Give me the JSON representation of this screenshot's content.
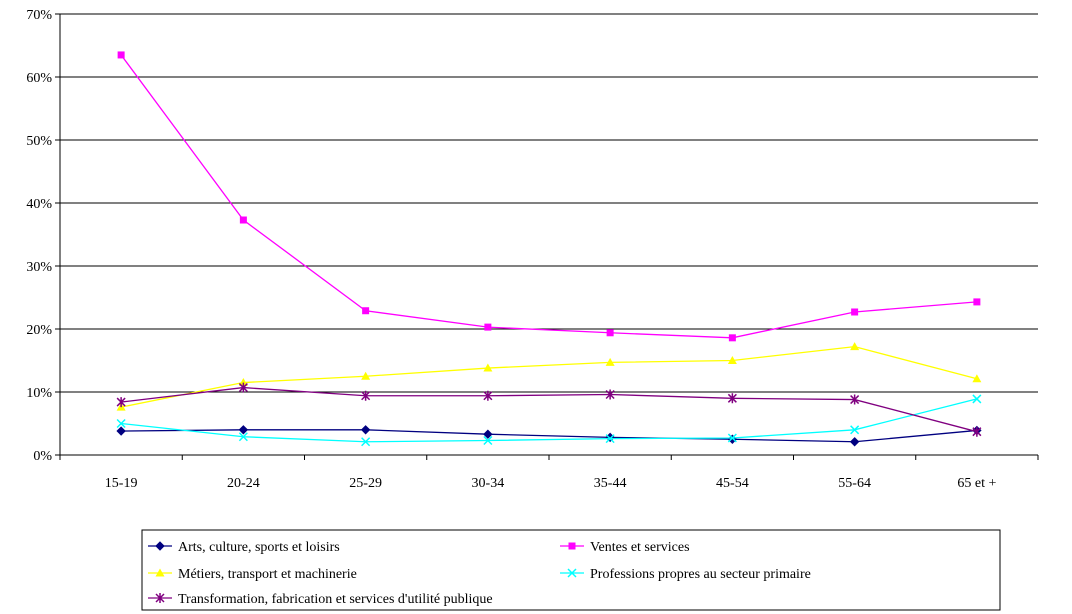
{
  "chart_data": {
    "type": "line",
    "categories": [
      "15-19",
      "20-24",
      "25-29",
      "30-34",
      "35-44",
      "45-54",
      "55-64",
      "65 et +"
    ],
    "ylim": [
      0,
      70
    ],
    "yticks": [
      0,
      10,
      20,
      30,
      40,
      50,
      60,
      70
    ],
    "ytick_format": "percent",
    "grid": "horizontal",
    "legend_position": "bottom",
    "series": [
      {
        "name": "Arts, culture, sports et loisirs",
        "color": "#000080",
        "marker": "diamond",
        "values": [
          3.8,
          4.0,
          4.0,
          3.3,
          2.8,
          2.5,
          2.1,
          3.9
        ]
      },
      {
        "name": "Ventes et services",
        "color": "#FF00FF",
        "marker": "square",
        "values": [
          63.5,
          37.3,
          22.9,
          20.3,
          19.4,
          18.6,
          22.7,
          24.3
        ]
      },
      {
        "name": "Métiers, transport et machinerie",
        "color": "#FFFF00",
        "marker": "triangle",
        "values": [
          7.6,
          11.5,
          12.5,
          13.8,
          14.7,
          15.0,
          17.2,
          12.1
        ]
      },
      {
        "name": "Professions propres au secteur primaire",
        "color": "#00FFFF",
        "marker": "x",
        "values": [
          5.0,
          2.9,
          2.1,
          2.3,
          2.6,
          2.7,
          4.0,
          8.9
        ]
      },
      {
        "name": "Transformation, fabrication et services d'utilité publique",
        "color": "#800080",
        "marker": "star",
        "values": [
          8.4,
          10.7,
          9.4,
          9.4,
          9.6,
          9.0,
          8.8,
          3.7
        ]
      }
    ]
  }
}
